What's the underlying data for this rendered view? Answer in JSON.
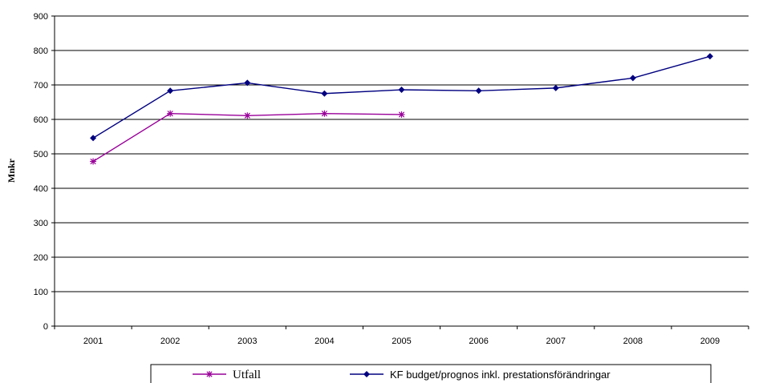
{
  "chart_data": {
    "type": "line",
    "title": "",
    "xlabel": "",
    "ylabel": "Mnkr",
    "categories": [
      "2001",
      "2002",
      "2003",
      "2004",
      "2005",
      "2006",
      "2007",
      "2008",
      "2009"
    ],
    "ylim": [
      0,
      900
    ],
    "yticks": [
      0,
      100,
      200,
      300,
      400,
      500,
      600,
      700,
      800,
      900
    ],
    "grid": true,
    "legend_position": "bottom",
    "series": [
      {
        "name": "Utfall",
        "color": "#990099",
        "marker": "asterisk",
        "values": [
          478,
          617,
          611,
          617,
          614,
          null,
          null,
          null,
          null
        ]
      },
      {
        "name": "KF budget/prognos inkl. prestationsförändringar",
        "color": "#000080",
        "marker": "diamond",
        "values": [
          546,
          683,
          706,
          675,
          686,
          683,
          691,
          720,
          783
        ]
      }
    ]
  }
}
